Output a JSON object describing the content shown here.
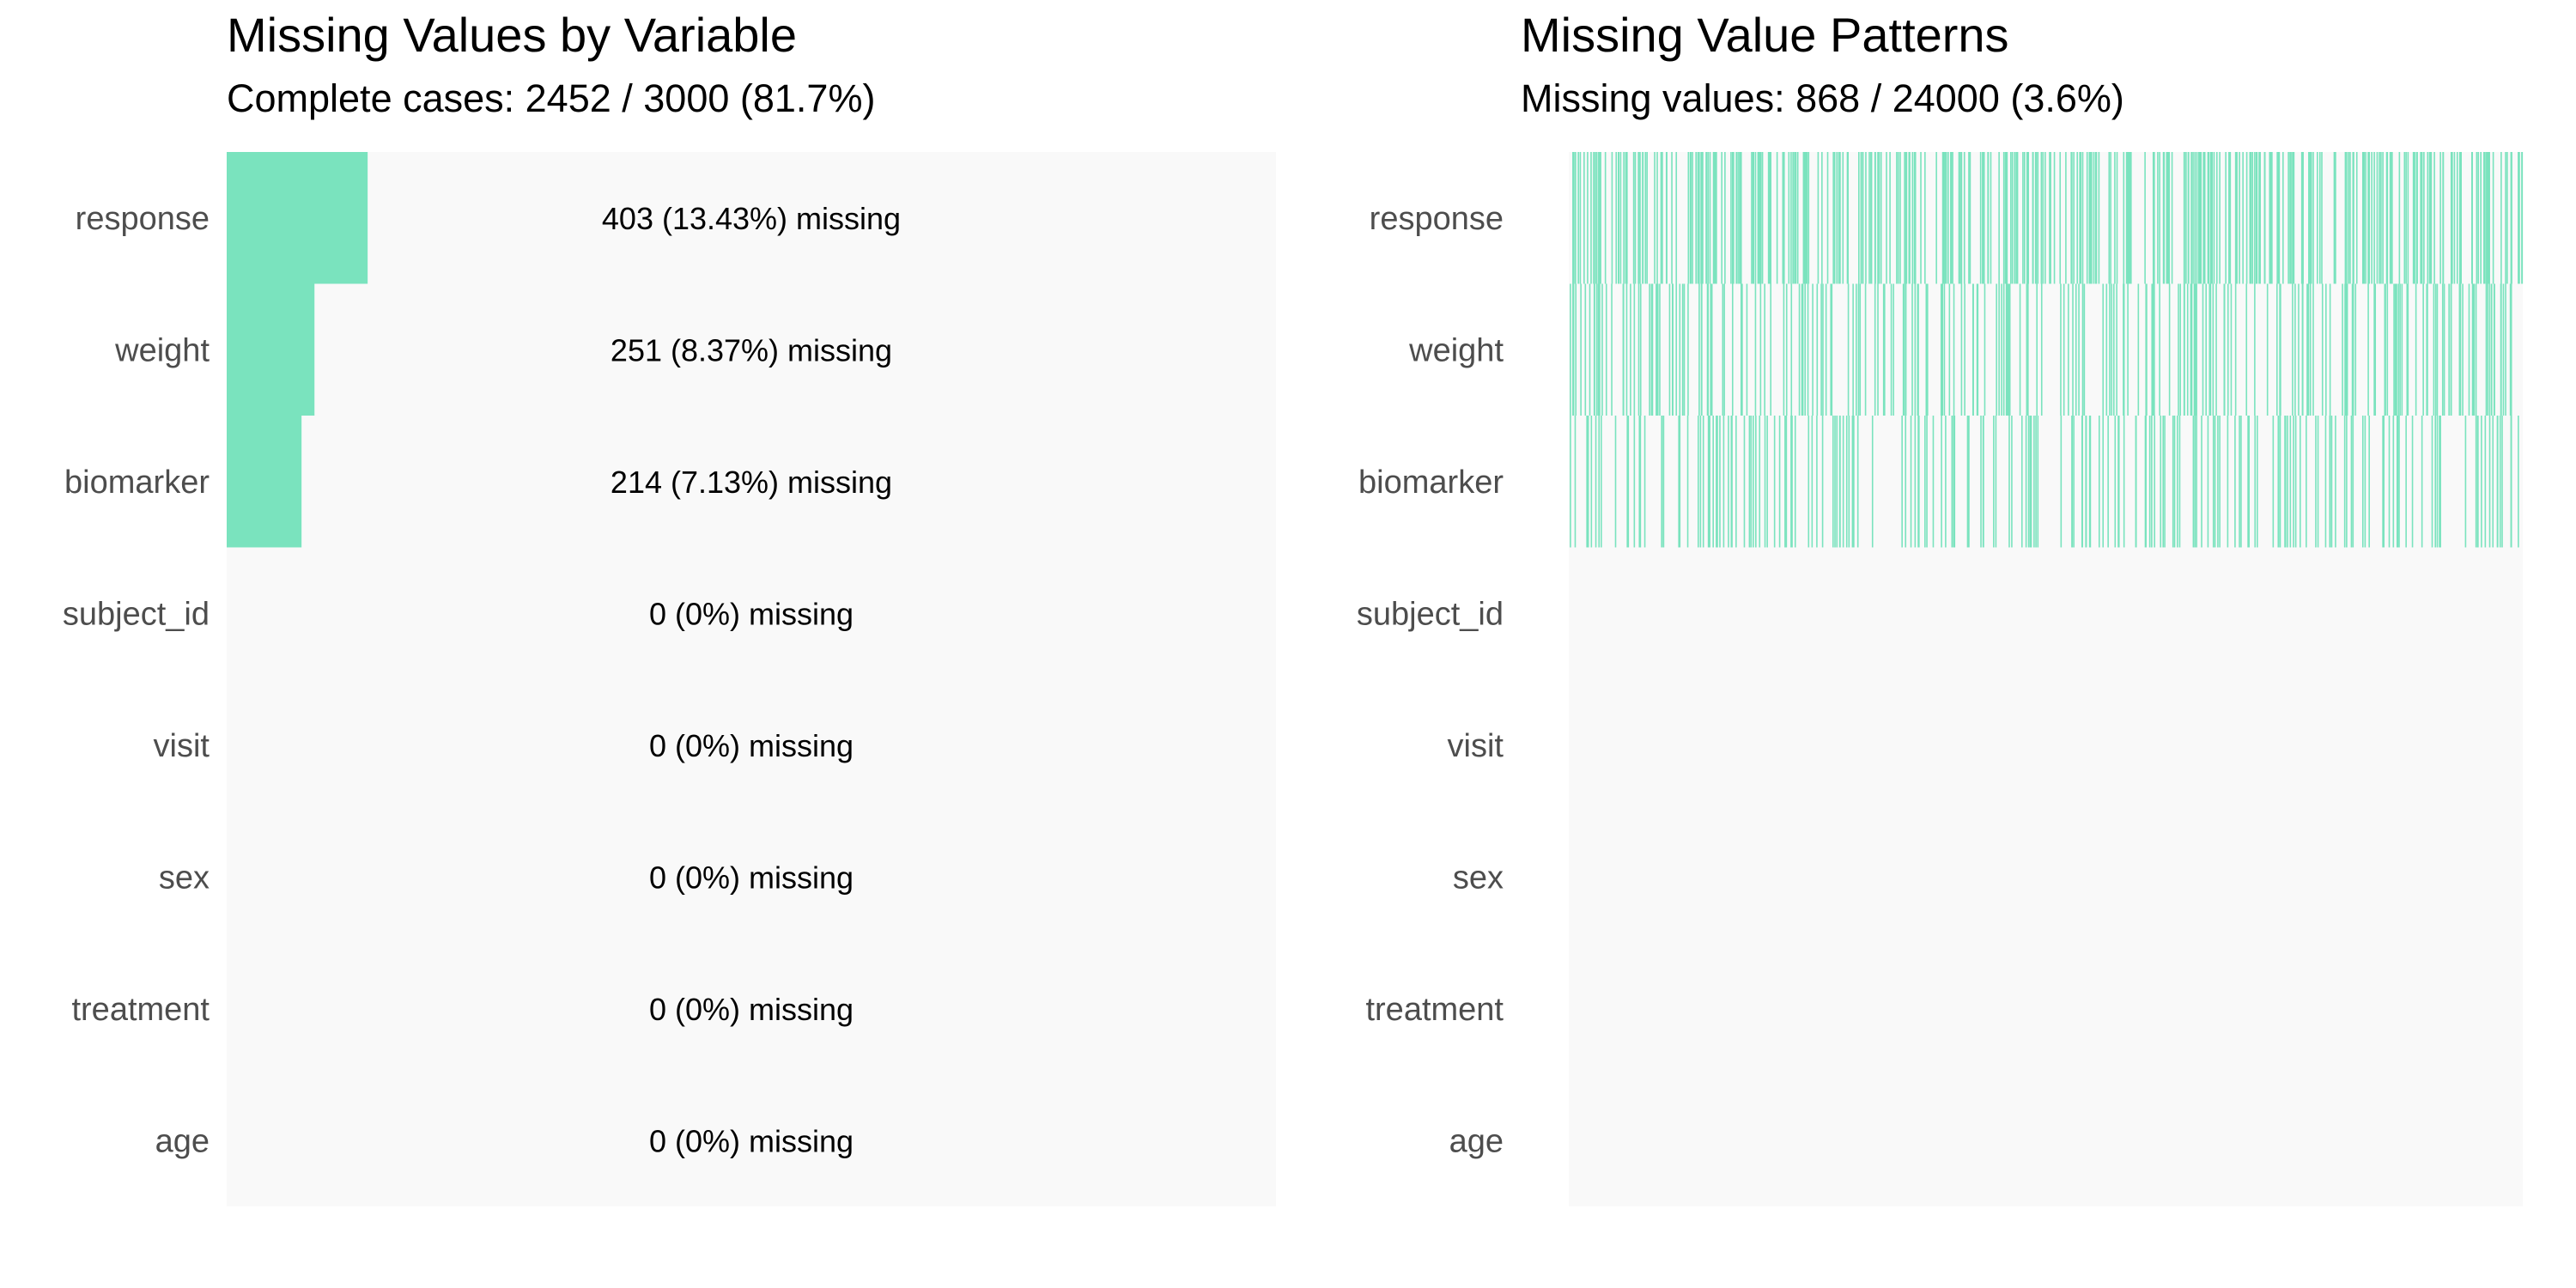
{
  "colors": {
    "missing": "#7ae3be",
    "panel_bg": "#f9f9f9"
  },
  "left_panel": {
    "title": "Missing Values by Variable",
    "subtitle": "Complete cases: 2452 / 3000 (81.7%)"
  },
  "right_panel": {
    "title": "Missing Value Patterns",
    "subtitle": "Missing values: 868 / 24000 (3.6%)"
  },
  "chart_data": [
    {
      "type": "bar",
      "orientation": "horizontal",
      "title": "Missing Values by Variable",
      "subtitle": "Complete cases: 2452 / 3000 (81.7%)",
      "categories": [
        "response",
        "weight",
        "biomarker",
        "subject_id",
        "visit",
        "sex",
        "treatment",
        "age"
      ],
      "values": [
        403,
        251,
        214,
        0,
        0,
        0,
        0,
        0
      ],
      "percent_missing": [
        13.43,
        8.37,
        7.13,
        0,
        0,
        0,
        0,
        0
      ],
      "labels": [
        "403 (13.43%) missing",
        "251 (8.37%) missing",
        "214 (7.13%) missing",
        "0 (0%) missing",
        "0 (0%) missing",
        "0 (0%) missing",
        "0 (0%) missing",
        "0 (0%) missing"
      ],
      "xlim": [
        0,
        3000
      ],
      "grid": false
    },
    {
      "type": "heatmap",
      "title": "Missing Value Patterns",
      "subtitle": "Missing values: 868 / 24000 (3.6%)",
      "rows": [
        "response",
        "weight",
        "biomarker",
        "subject_id",
        "visit",
        "sex",
        "treatment",
        "age"
      ],
      "n_observations": 3000,
      "missing_counts": [
        403,
        251,
        214,
        0,
        0,
        0,
        0,
        0
      ],
      "grid": false
    }
  ]
}
